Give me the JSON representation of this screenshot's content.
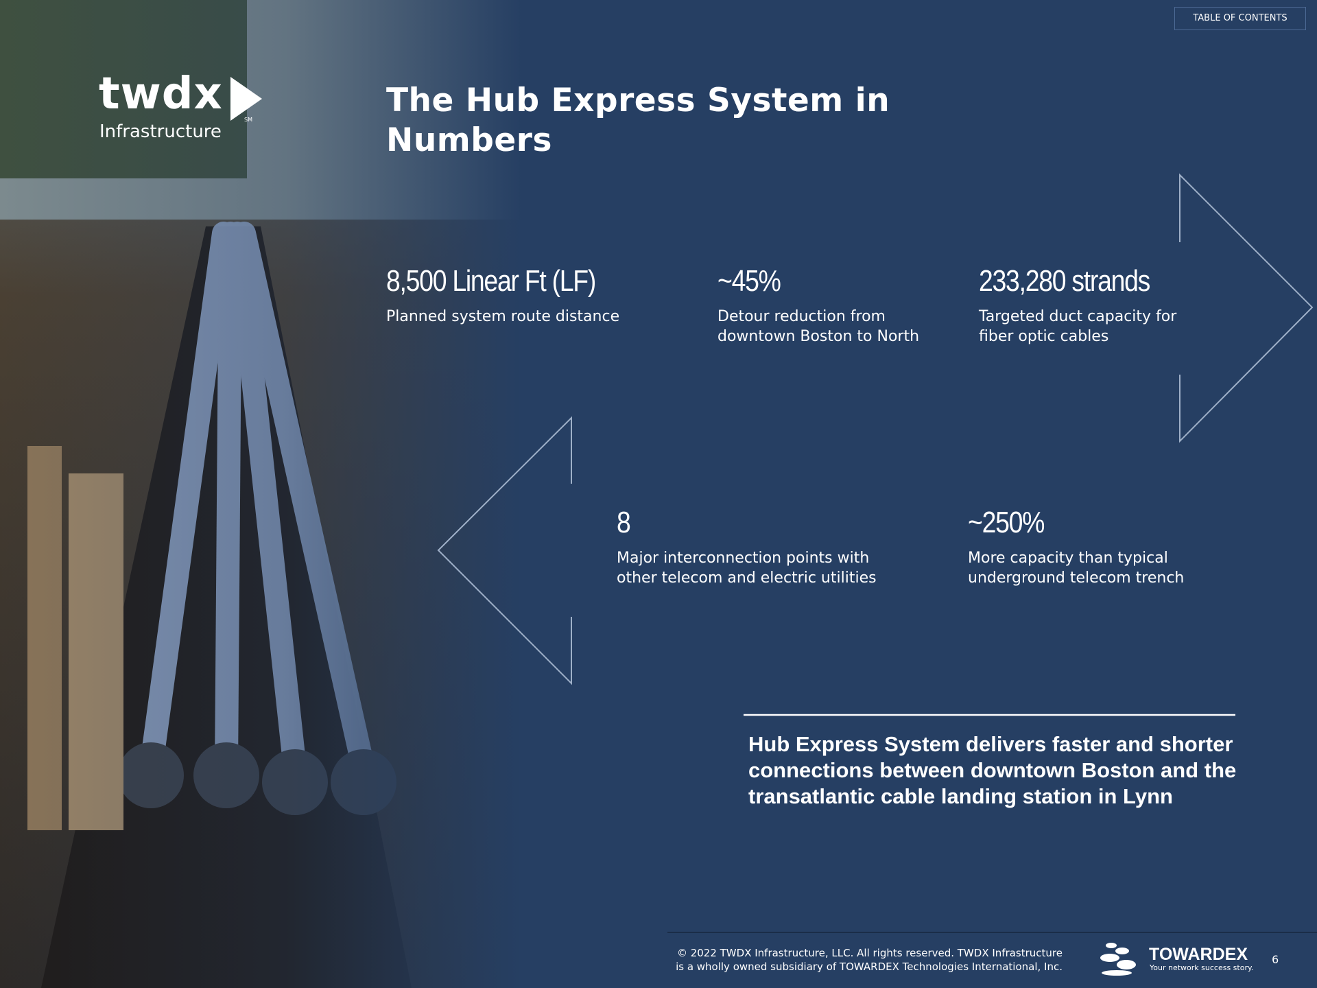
{
  "header": {
    "toc_button": "TABLE OF CONTENTS",
    "logo": {
      "wordmark": "twdx",
      "subtitle": "Infrastructure",
      "mark": "SM"
    },
    "title_lines": [
      "The Hub Express System in",
      "Numbers"
    ]
  },
  "stats": [
    {
      "figure": "8,500 Linear Ft (LF)",
      "description_lines": [
        "Planned system route distance"
      ]
    },
    {
      "figure": "~45%",
      "description_lines": [
        "Detour reduction from",
        "downtown Boston to North"
      ]
    },
    {
      "figure": "233,280 strands",
      "description_lines": [
        "Targeted duct capacity for",
        "fiber optic cables"
      ]
    },
    {
      "figure": "8",
      "description_lines": [
        "Major interconnection points with",
        "other telecom and electric utilities"
      ]
    },
    {
      "figure": "~250%",
      "description_lines": [
        "More capacity than typical",
        "underground telecom trench"
      ]
    }
  ],
  "callout_lines": [
    "Hub Express System delivers faster and shorter",
    "connections between downtown Boston and the",
    "transatlantic cable landing station in Lynn"
  ],
  "footer": {
    "copyright_lines": [
      "© 2022 TWDX Infrastructure, LLC.  All rights reserved.  TWDX Infrastructure",
      "is a wholly owned subsidiary of TOWARDEX Technologies International, Inc."
    ],
    "brand": "TOWARDEX",
    "tagline": "Your network success story.",
    "page_number": "6"
  }
}
